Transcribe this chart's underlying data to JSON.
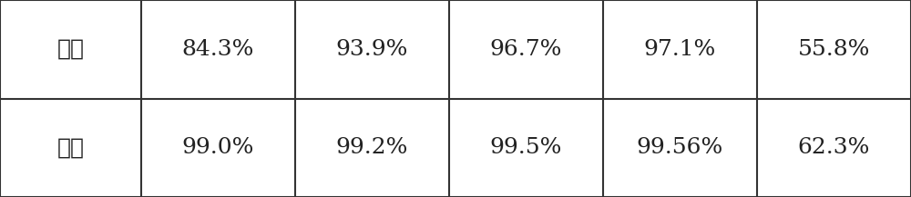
{
  "rows": [
    [
      "得率",
      "84.3%",
      "93.9%",
      "96.7%",
      "97.1%",
      "55.8%"
    ],
    [
      "纯度",
      "99.0%",
      "99.2%",
      "99.5%",
      "99.56%",
      "62.3%"
    ]
  ],
  "background_color": "#ffffff",
  "line_color": "#333333",
  "text_color": "#222222",
  "font_size": 18,
  "fig_width": 10.0,
  "fig_height": 2.17,
  "dpi": 100
}
